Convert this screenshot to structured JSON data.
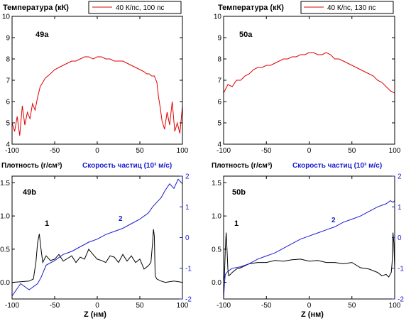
{
  "colors": {
    "red": "#e00000",
    "black": "#000000",
    "blue": "#1a1ad0"
  },
  "chart_data": [
    {
      "id": "49a",
      "type": "line",
      "title": "Температура (кК)",
      "panel_label": "49a",
      "legend": "40 К/пс, 100 пс",
      "xlim": [
        -100,
        100
      ],
      "ylim": [
        4,
        10
      ],
      "xticks": [
        "-100",
        "-50",
        "0",
        "50",
        "100"
      ],
      "yticks": [
        "4",
        "5",
        "6",
        "7",
        "8",
        "9",
        "10"
      ],
      "series": [
        {
          "name": "40 К/пс, 100 пс",
          "color": "#e00000",
          "x": [
            -100,
            -97,
            -94,
            -91,
            -88,
            -85,
            -82,
            -79,
            -76,
            -73,
            -70,
            -67,
            -64,
            -61,
            -58,
            -55,
            -50,
            -45,
            -40,
            -35,
            -30,
            -25,
            -20,
            -15,
            -10,
            -5,
            0,
            5,
            10,
            15,
            20,
            25,
            30,
            35,
            40,
            45,
            50,
            55,
            58,
            61,
            64,
            67,
            70,
            72,
            74,
            76,
            79,
            82,
            85,
            88,
            91,
            94,
            97,
            100
          ],
          "y": [
            5.0,
            4.6,
            5.3,
            4.4,
            5.8,
            4.9,
            5.5,
            5.2,
            5.9,
            5.6,
            6.2,
            6.7,
            6.9,
            7.1,
            7.2,
            7.3,
            7.5,
            7.6,
            7.7,
            7.8,
            7.9,
            7.9,
            8.0,
            8.1,
            8.1,
            8.0,
            8.1,
            8.1,
            8.0,
            8.0,
            7.9,
            7.9,
            7.9,
            7.8,
            7.7,
            7.6,
            7.5,
            7.4,
            7.3,
            7.3,
            7.2,
            7.2,
            6.9,
            6.2,
            5.7,
            5.1,
            4.7,
            5.5,
            4.9,
            6.0,
            4.6,
            5.0,
            4.5,
            5.8
          ]
        }
      ]
    },
    {
      "id": "50a",
      "type": "line",
      "title": "Температура (кК)",
      "panel_label": "50a",
      "legend": "40 К/пс, 130 пс",
      "xlim": [
        -100,
        100
      ],
      "ylim": [
        4,
        10
      ],
      "xticks": [
        "-100",
        "-50",
        "0",
        "50",
        "100"
      ],
      "yticks": [
        "4",
        "5",
        "6",
        "7",
        "8",
        "9",
        "10"
      ],
      "series": [
        {
          "name": "40 К/пс, 130 пс",
          "color": "#e00000",
          "x": [
            -100,
            -95,
            -90,
            -85,
            -80,
            -75,
            -70,
            -65,
            -60,
            -55,
            -50,
            -45,
            -40,
            -35,
            -30,
            -25,
            -20,
            -15,
            -10,
            -5,
            0,
            5,
            10,
            15,
            20,
            25,
            30,
            35,
            40,
            45,
            50,
            55,
            60,
            65,
            70,
            75,
            80,
            85,
            90,
            95,
            100
          ],
          "y": [
            6.4,
            6.8,
            6.7,
            7.0,
            7.0,
            7.2,
            7.3,
            7.5,
            7.6,
            7.6,
            7.7,
            7.7,
            7.8,
            7.9,
            8.0,
            8.0,
            8.1,
            8.1,
            8.2,
            8.2,
            8.3,
            8.3,
            8.2,
            8.2,
            8.3,
            8.2,
            8.0,
            8.0,
            7.9,
            7.8,
            7.7,
            7.6,
            7.5,
            7.4,
            7.3,
            7.2,
            7.0,
            6.9,
            6.7,
            6.5,
            6.4
          ]
        }
      ]
    },
    {
      "id": "49b",
      "type": "line",
      "title": "Плотность (г/см³)",
      "title_right": "Скорость частиц (10³ м/с)",
      "panel_label": "49b",
      "xlabel": "Z (нм)",
      "xlim": [
        -100,
        100
      ],
      "ylim": [
        -0.25,
        1.6
      ],
      "ylim_right": [
        -2,
        2
      ],
      "xticks": [
        "-100",
        "-50",
        "0",
        "50",
        "100"
      ],
      "yticks": [
        "0.0",
        "0.5",
        "1.0",
        "1.5"
      ],
      "yticks_right": [
        "-2",
        "-1",
        "0",
        "1",
        "2"
      ],
      "curve_labels": [
        "1",
        "2"
      ],
      "series": [
        {
          "name": "1",
          "axis": "left",
          "color": "#000000",
          "x": [
            -100,
            -90,
            -80,
            -75,
            -72,
            -70,
            -68,
            -66,
            -64,
            -62,
            -60,
            -55,
            -50,
            -45,
            -40,
            -35,
            -30,
            -25,
            -20,
            -15,
            -10,
            -5,
            0,
            5,
            10,
            15,
            20,
            25,
            30,
            35,
            40,
            45,
            50,
            55,
            60,
            63,
            65,
            66,
            67,
            68,
            70,
            75,
            80,
            90,
            100
          ],
          "y": [
            0.0,
            0.01,
            0.02,
            0.05,
            0.3,
            0.6,
            0.73,
            0.5,
            0.3,
            0.35,
            0.4,
            0.33,
            0.35,
            0.42,
            0.32,
            0.36,
            0.4,
            0.3,
            0.38,
            0.35,
            0.5,
            0.42,
            0.35,
            0.33,
            0.3,
            0.4,
            0.38,
            0.3,
            0.42,
            0.32,
            0.4,
            0.3,
            0.35,
            0.2,
            0.25,
            0.3,
            0.6,
            0.8,
            0.7,
            0.1,
            0.05,
            0.02,
            0.0,
            0.02,
            0.0
          ]
        },
        {
          "name": "2",
          "axis": "right",
          "color": "#1a1ad0",
          "x": [
            -100,
            -90,
            -80,
            -70,
            -66,
            -60,
            -50,
            -40,
            -30,
            -20,
            -10,
            0,
            10,
            20,
            30,
            40,
            50,
            55,
            60,
            65,
            70,
            75,
            80,
            85,
            90,
            95,
            100
          ],
          "y": [
            -1.9,
            -1.5,
            -1.7,
            -1.5,
            -1.3,
            -0.9,
            -0.75,
            -0.55,
            -0.45,
            -0.3,
            -0.15,
            -0.05,
            0.1,
            0.2,
            0.3,
            0.45,
            0.6,
            0.7,
            0.8,
            1.0,
            1.15,
            1.3,
            1.55,
            1.75,
            1.6,
            1.9,
            1.75
          ]
        }
      ]
    },
    {
      "id": "50b",
      "type": "line",
      "title": "Плотность (г/см³)",
      "title_right": "Скорость частиц (10³ м/с)",
      "panel_label": "50b",
      "xlabel": "Z (нм)",
      "xlim": [
        -100,
        100
      ],
      "ylim": [
        -0.25,
        1.6
      ],
      "ylim_right": [
        -2,
        2
      ],
      "xticks": [
        "-100",
        "-50",
        "0",
        "50",
        "100"
      ],
      "yticks": [
        "0.0",
        "0.5",
        "1.0",
        "1.5"
      ],
      "yticks_right": [
        "-2",
        "-1",
        "0",
        "1",
        "2"
      ],
      "curve_labels": [
        "1",
        "2"
      ],
      "series": [
        {
          "name": "1",
          "axis": "left",
          "color": "#000000",
          "x": [
            -100,
            -99,
            -98,
            -97,
            -96,
            -95,
            -94,
            -92,
            -90,
            -85,
            -80,
            -75,
            -70,
            -60,
            -50,
            -40,
            -30,
            -20,
            -10,
            0,
            10,
            20,
            30,
            40,
            50,
            60,
            70,
            80,
            85,
            90,
            93,
            96,
            97,
            98,
            99,
            100
          ],
          "y": [
            0.0,
            0.1,
            0.5,
            0.75,
            0.5,
            0.2,
            0.1,
            0.12,
            0.15,
            0.2,
            0.22,
            0.25,
            0.28,
            0.3,
            0.3,
            0.33,
            0.32,
            0.34,
            0.35,
            0.32,
            0.33,
            0.3,
            0.3,
            0.28,
            0.3,
            0.22,
            0.2,
            0.15,
            0.1,
            0.12,
            0.08,
            0.15,
            0.3,
            0.75,
            0.6,
            0.2
          ]
        },
        {
          "name": "2",
          "axis": "right",
          "color": "#1a1ad0",
          "x": [
            -100,
            -99,
            -98,
            -95,
            -90,
            -80,
            -70,
            -60,
            -50,
            -40,
            -30,
            -20,
            -10,
            0,
            10,
            20,
            30,
            40,
            50,
            60,
            70,
            80,
            90,
            95,
            98,
            100
          ],
          "y": [
            -2.0,
            -1.5,
            -1.2,
            -1.1,
            -1.0,
            -0.95,
            -0.85,
            -0.7,
            -0.6,
            -0.5,
            -0.35,
            -0.2,
            -0.05,
            0.05,
            0.15,
            0.25,
            0.35,
            0.5,
            0.6,
            0.7,
            0.85,
            1.0,
            1.1,
            1.2,
            1.15,
            1.2
          ]
        }
      ]
    }
  ]
}
